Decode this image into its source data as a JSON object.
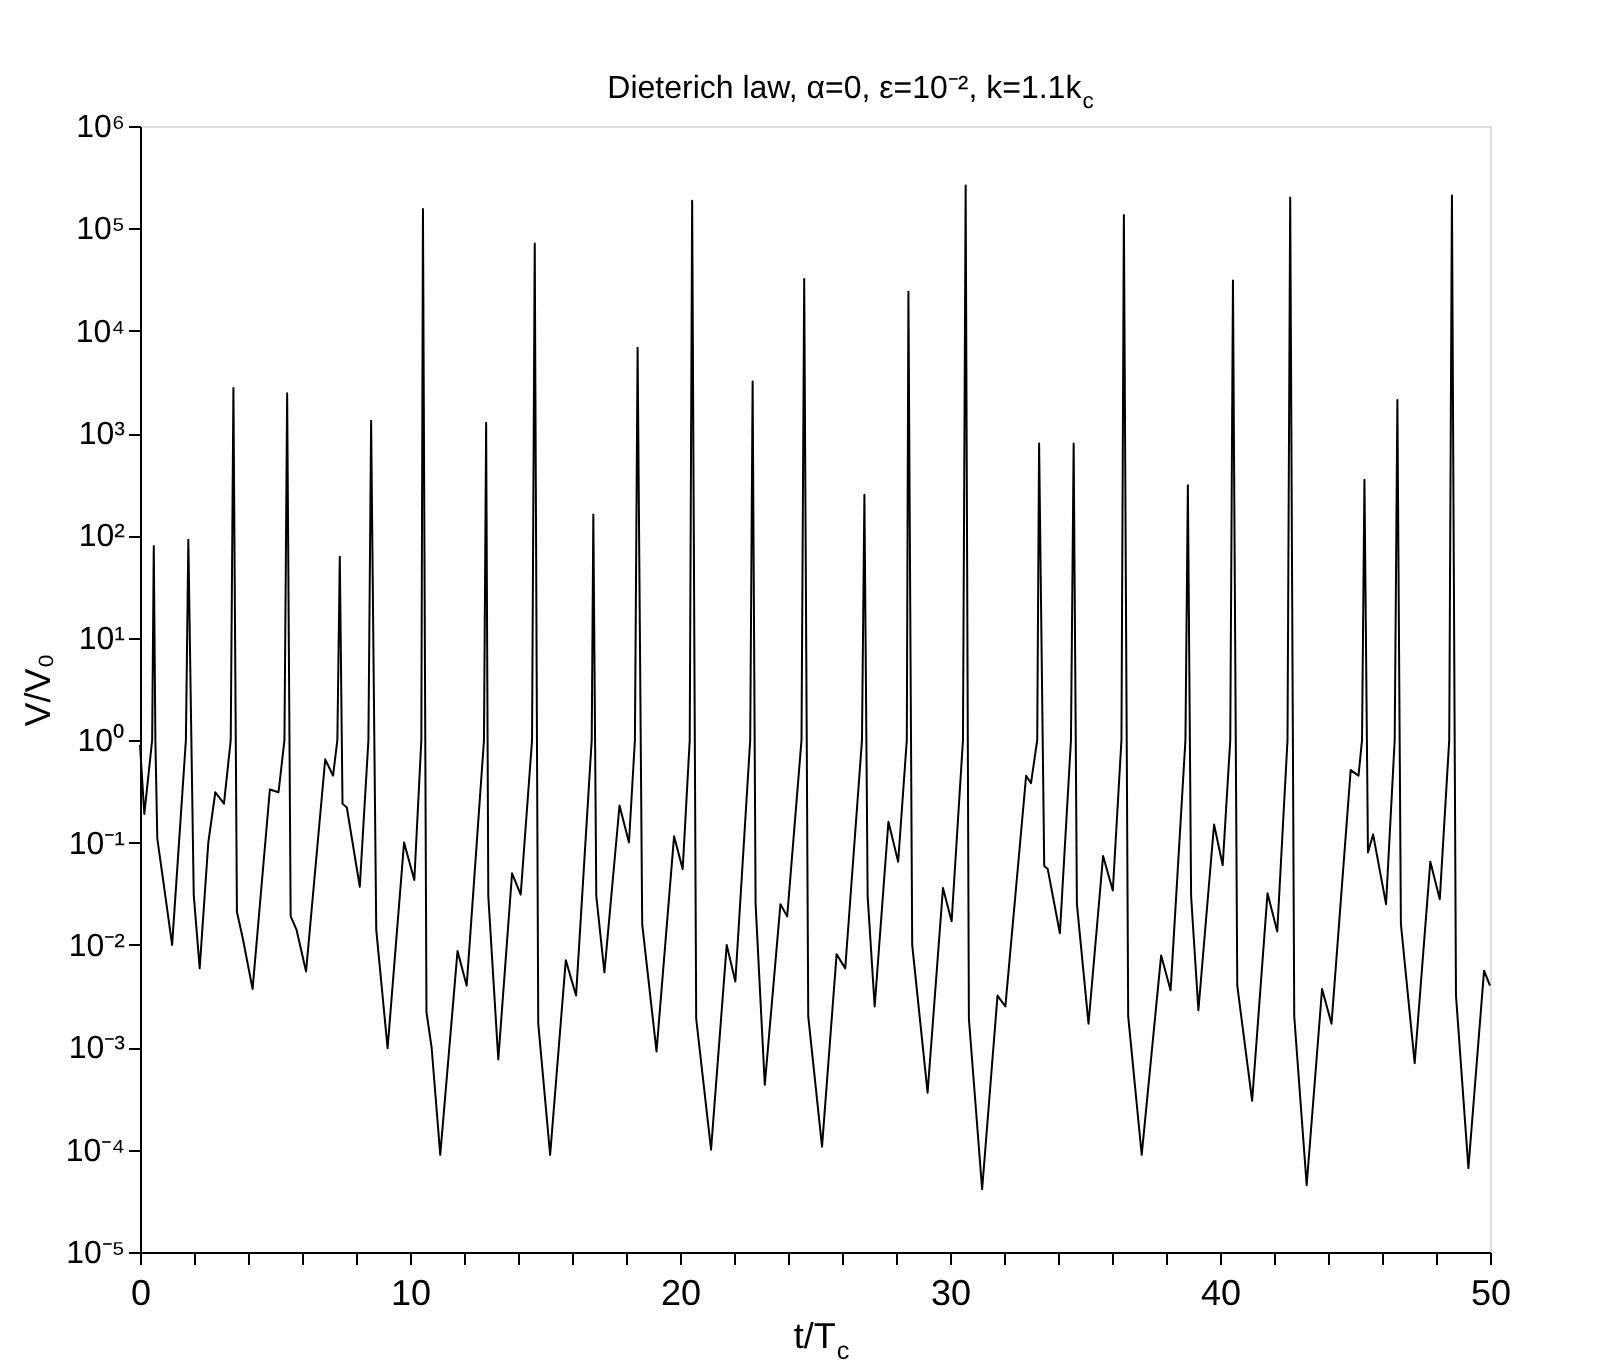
{
  "chart_data": {
    "type": "line",
    "title": "Dieterich law, α=0, ε=10⁻², k=1.1k$_{c}$",
    "xlabel": "t/T$_{c}$",
    "ylabel": "V/V₀",
    "log": "y",
    "grid": false,
    "legend": false,
    "marker": "none",
    "line_style": "solid",
    "xlim": [
      0,
      50
    ],
    "ylim": [
      1e-05,
      1000000.0
    ],
    "xticks": [
      0,
      {
        "value": 2,
        "label": null
      },
      {
        "value": 4,
        "label": null
      },
      {
        "value": 6,
        "label": null
      },
      {
        "value": 8,
        "label": null
      },
      10,
      {
        "value": 12,
        "label": null
      },
      {
        "value": 14,
        "label": null
      },
      {
        "value": 16,
        "label": null
      },
      {
        "value": 18,
        "label": null
      },
      20,
      {
        "value": 22,
        "label": null
      },
      {
        "value": 24,
        "label": null
      },
      {
        "value": 26,
        "label": null
      },
      {
        "value": 28,
        "label": null
      },
      30,
      {
        "value": 32,
        "label": null
      },
      {
        "value": 34,
        "label": null
      },
      {
        "value": 36,
        "label": null
      },
      {
        "value": 38,
        "label": null
      },
      40,
      {
        "value": 42,
        "label": null
      },
      {
        "value": 44,
        "label": null
      },
      {
        "value": 46,
        "label": null
      },
      {
        "value": 48,
        "label": null
      },
      50
    ],
    "yticks": [
      {
        "value": 1e-05,
        "label": "10⁻⁵"
      },
      {
        "value": 0.0001,
        "label": "10⁻⁴"
      },
      {
        "value": 0.001,
        "label": "10⁻³"
      },
      {
        "value": 0.01,
        "label": "10⁻²"
      },
      {
        "value": 0.1,
        "label": "10⁻¹"
      },
      {
        "value": 1,
        "label": "10⁰"
      },
      {
        "value": 10,
        "label": "10¹"
      },
      {
        "value": 100,
        "label": "10²"
      },
      {
        "value": 1000,
        "label": "10³"
      },
      {
        "value": 10000,
        "label": "10⁴"
      },
      {
        "value": 100000,
        "label": "10⁵"
      },
      {
        "value": 1000000,
        "label": "10⁶"
      }
    ],
    "series": [
      {
        "color": "#000000",
        "x": [
          0,
          0.16,
          0.45,
          0.51,
          0.57,
          0.64,
          0.8,
          1.19,
          1.7,
          1.79,
          1.99,
          2.21,
          2.53,
          2.79,
          3.11,
          3.36,
          3.46,
          3.59,
          3.81,
          4.17,
          4.81,
          5.13,
          5.35,
          5.45,
          5.58,
          5.8,
          6.15,
          6.86,
          7.15,
          7.31,
          7.4,
          7.5,
          7.66,
          8.14,
          8.46,
          8.56,
          8.75,
          9.17,
          9.78,
          10.16,
          10.42,
          10.48,
          10.61,
          10.8,
          11.12,
          11.76,
          12.1,
          12.74,
          12.82,
          12.9,
          13.27,
          13.78,
          14.1,
          14.52,
          14.62,
          14.75,
          15.19,
          15.77,
          16.15,
          16.73,
          16.79,
          16.9,
          17.2,
          17.76,
          18.11,
          18.33,
          18.43,
          18.6,
          19.13,
          19.78,
          20.1,
          20.36,
          20.45,
          20.6,
          21.15,
          21.73,
          22.05,
          22.6,
          22.69,
          22.8,
          23.14,
          23.72,
          23.97,
          24.5,
          24.6,
          24.75,
          25.26,
          25.8,
          26.12,
          26.74,
          26.83,
          26.95,
          27.21,
          27.72,
          28.08,
          28.4,
          28.46,
          28.6,
          29.17,
          29.74,
          30.06,
          30.48,
          30.58,
          30.7,
          31.19,
          31.76,
          32.05,
          32.82,
          33.0,
          33.23,
          33.3,
          33.49,
          33.62,
          34.07,
          34.48,
          34.58,
          34.7,
          35.13,
          35.67,
          36.03,
          36.35,
          36.44,
          36.6,
          37.1,
          37.82,
          38.17,
          38.72,
          38.81,
          38.93,
          39.2,
          39.78,
          40.1,
          40.38,
          40.48,
          40.64,
          41.19,
          41.76,
          42.12,
          42.5,
          42.6,
          42.75,
          43.21,
          43.78,
          44.13,
          44.84,
          45.13,
          45.26,
          45.35,
          45.48,
          45.67,
          46.15,
          46.47,
          46.57,
          46.7,
          47.21,
          47.79,
          48.14,
          48.49,
          48.59,
          48.74,
          49.2,
          49.78,
          50
        ],
        "values": [
          0.9,
          0.19,
          1.0,
          79,
          1.0,
          0.11,
          0.055,
          0.01,
          1,
          91,
          0.031,
          0.0059,
          0.1,
          0.31,
          0.24,
          1,
          2750,
          0.021,
          0.0115,
          0.0037,
          0.33,
          0.31,
          1,
          2450,
          0.019,
          0.014,
          0.0055,
          0.65,
          0.45,
          1,
          62,
          0.24,
          0.22,
          0.037,
          1,
          1320,
          0.014,
          0.00098,
          0.1,
          0.043,
          1,
          155000,
          0.0022,
          0.001,
          8.9e-05,
          0.0087,
          0.004,
          1,
          1260,
          0.03,
          0.00076,
          0.05,
          0.031,
          1,
          71000,
          0.0017,
          8.9e-05,
          0.0071,
          0.0032,
          1,
          160,
          0.03,
          0.0054,
          0.23,
          0.1,
          1,
          6800,
          0.016,
          0.00091,
          0.115,
          0.055,
          1,
          186000,
          0.0019,
          0.0001,
          0.01,
          0.0044,
          1,
          3200,
          0.025,
          0.00043,
          0.025,
          0.019,
          1,
          32000,
          0.002,
          0.000107,
          0.0081,
          0.0059,
          1,
          250,
          0.03,
          0.0025,
          0.16,
          0.065,
          1,
          24000,
          0.01,
          0.00036,
          0.036,
          0.017,
          1,
          263000,
          0.0019,
          4.1e-05,
          0.0032,
          0.0025,
          0.45,
          0.38,
          1,
          790,
          0.059,
          0.055,
          0.013,
          1,
          790,
          0.025,
          0.0017,
          0.074,
          0.034,
          1,
          135000,
          0.002,
          8.9e-05,
          0.0079,
          0.0036,
          1,
          310,
          0.03,
          0.0023,
          0.15,
          0.06,
          1,
          31000,
          0.004,
          0.0003,
          0.032,
          0.0135,
          1,
          200000,
          0.002,
          4.5e-05,
          0.0037,
          0.0017,
          0.51,
          0.45,
          1,
          350,
          0.08,
          0.12,
          0.025,
          1,
          2100,
          0.016,
          0.0007,
          0.065,
          0.028,
          1,
          210000,
          0.0032,
          6.6e-05,
          0.0056,
          0.004
        ]
      }
    ]
  }
}
